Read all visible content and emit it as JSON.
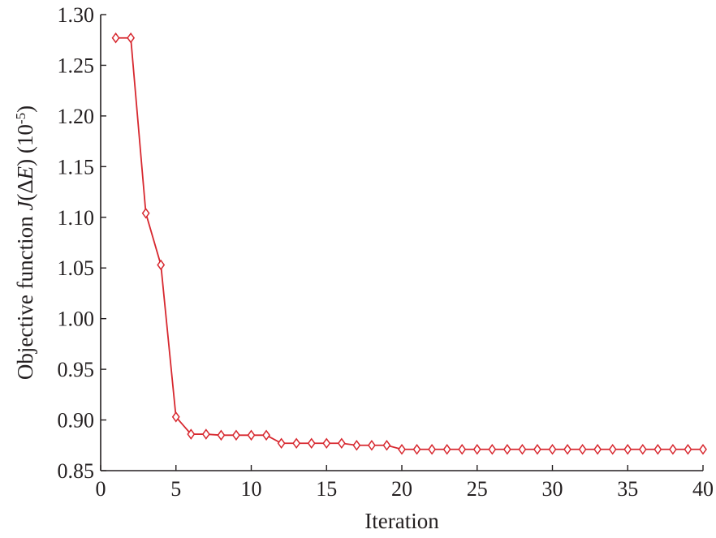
{
  "chart_data": {
    "type": "line",
    "title": "",
    "xlabel": "Iteration",
    "ylabel": {
      "prefix": "Objective function ",
      "symbol": "J",
      "open": "(Δ",
      "symbol2": "E",
      "close": ") (10",
      "exponent": "-5",
      "end": ")"
    },
    "xlim": [
      0,
      40
    ],
    "ylim": [
      0.85,
      1.3
    ],
    "xticks": [
      "0",
      "5",
      "10",
      "15",
      "20",
      "25",
      "30",
      "35",
      "40"
    ],
    "yticks": [
      "0.85",
      "0.90",
      "0.95",
      "1.00",
      "1.05",
      "1.10",
      "1.15",
      "1.20",
      "1.25",
      "1.30"
    ],
    "grid": false,
    "marker": "diamond",
    "color": "#d7282f",
    "series": [
      {
        "x": [
          1,
          2,
          3,
          4,
          5,
          6,
          7,
          8,
          9,
          10,
          11,
          12,
          13,
          14,
          15,
          16,
          17,
          18,
          19,
          20,
          21,
          22,
          23,
          24,
          25,
          26,
          27,
          28,
          29,
          30,
          31,
          32,
          33,
          34,
          35,
          36,
          37,
          38,
          39,
          40
        ],
        "values": [
          1.277,
          1.277,
          1.104,
          1.053,
          0.903,
          0.886,
          0.886,
          0.885,
          0.885,
          0.885,
          0.885,
          0.877,
          0.877,
          0.877,
          0.877,
          0.877,
          0.875,
          0.875,
          0.875,
          0.871,
          0.871,
          0.871,
          0.871,
          0.871,
          0.871,
          0.871,
          0.871,
          0.871,
          0.871,
          0.871,
          0.871,
          0.871,
          0.871,
          0.871,
          0.871,
          0.871,
          0.871,
          0.871,
          0.871,
          0.871
        ]
      }
    ]
  }
}
